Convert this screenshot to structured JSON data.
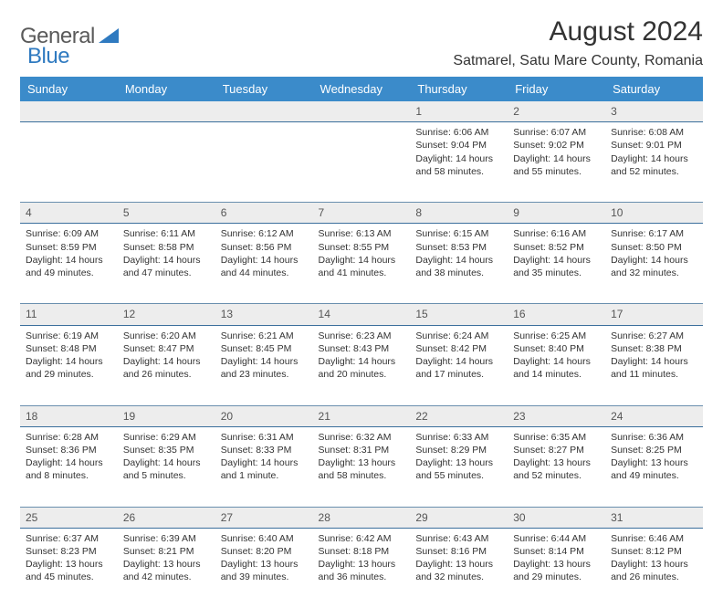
{
  "brand": {
    "name_a": "General",
    "name_b": "Blue"
  },
  "header": {
    "month_title": "August 2024",
    "location": "Satmarel, Satu Mare County, Romania"
  },
  "colors": {
    "header_bg": "#3b8bca",
    "header_text": "#ffffff",
    "daynum_bg": "#ededed",
    "rule": "#3b6f9c",
    "brand_blue": "#2f7ac0"
  },
  "day_labels": [
    "Sunday",
    "Monday",
    "Tuesday",
    "Wednesday",
    "Thursday",
    "Friday",
    "Saturday"
  ],
  "weeks": [
    {
      "numbers": [
        "",
        "",
        "",
        "",
        "1",
        "2",
        "3"
      ],
      "cells": [
        null,
        null,
        null,
        null,
        {
          "sunrise": "Sunrise: 6:06 AM",
          "sunset": "Sunset: 9:04 PM",
          "day1": "Daylight: 14 hours",
          "day2": "and 58 minutes."
        },
        {
          "sunrise": "Sunrise: 6:07 AM",
          "sunset": "Sunset: 9:02 PM",
          "day1": "Daylight: 14 hours",
          "day2": "and 55 minutes."
        },
        {
          "sunrise": "Sunrise: 6:08 AM",
          "sunset": "Sunset: 9:01 PM",
          "day1": "Daylight: 14 hours",
          "day2": "and 52 minutes."
        }
      ]
    },
    {
      "numbers": [
        "4",
        "5",
        "6",
        "7",
        "8",
        "9",
        "10"
      ],
      "cells": [
        {
          "sunrise": "Sunrise: 6:09 AM",
          "sunset": "Sunset: 8:59 PM",
          "day1": "Daylight: 14 hours",
          "day2": "and 49 minutes."
        },
        {
          "sunrise": "Sunrise: 6:11 AM",
          "sunset": "Sunset: 8:58 PM",
          "day1": "Daylight: 14 hours",
          "day2": "and 47 minutes."
        },
        {
          "sunrise": "Sunrise: 6:12 AM",
          "sunset": "Sunset: 8:56 PM",
          "day1": "Daylight: 14 hours",
          "day2": "and 44 minutes."
        },
        {
          "sunrise": "Sunrise: 6:13 AM",
          "sunset": "Sunset: 8:55 PM",
          "day1": "Daylight: 14 hours",
          "day2": "and 41 minutes."
        },
        {
          "sunrise": "Sunrise: 6:15 AM",
          "sunset": "Sunset: 8:53 PM",
          "day1": "Daylight: 14 hours",
          "day2": "and 38 minutes."
        },
        {
          "sunrise": "Sunrise: 6:16 AM",
          "sunset": "Sunset: 8:52 PM",
          "day1": "Daylight: 14 hours",
          "day2": "and 35 minutes."
        },
        {
          "sunrise": "Sunrise: 6:17 AM",
          "sunset": "Sunset: 8:50 PM",
          "day1": "Daylight: 14 hours",
          "day2": "and 32 minutes."
        }
      ]
    },
    {
      "numbers": [
        "11",
        "12",
        "13",
        "14",
        "15",
        "16",
        "17"
      ],
      "cells": [
        {
          "sunrise": "Sunrise: 6:19 AM",
          "sunset": "Sunset: 8:48 PM",
          "day1": "Daylight: 14 hours",
          "day2": "and 29 minutes."
        },
        {
          "sunrise": "Sunrise: 6:20 AM",
          "sunset": "Sunset: 8:47 PM",
          "day1": "Daylight: 14 hours",
          "day2": "and 26 minutes."
        },
        {
          "sunrise": "Sunrise: 6:21 AM",
          "sunset": "Sunset: 8:45 PM",
          "day1": "Daylight: 14 hours",
          "day2": "and 23 minutes."
        },
        {
          "sunrise": "Sunrise: 6:23 AM",
          "sunset": "Sunset: 8:43 PM",
          "day1": "Daylight: 14 hours",
          "day2": "and 20 minutes."
        },
        {
          "sunrise": "Sunrise: 6:24 AM",
          "sunset": "Sunset: 8:42 PM",
          "day1": "Daylight: 14 hours",
          "day2": "and 17 minutes."
        },
        {
          "sunrise": "Sunrise: 6:25 AM",
          "sunset": "Sunset: 8:40 PM",
          "day1": "Daylight: 14 hours",
          "day2": "and 14 minutes."
        },
        {
          "sunrise": "Sunrise: 6:27 AM",
          "sunset": "Sunset: 8:38 PM",
          "day1": "Daylight: 14 hours",
          "day2": "and 11 minutes."
        }
      ]
    },
    {
      "numbers": [
        "18",
        "19",
        "20",
        "21",
        "22",
        "23",
        "24"
      ],
      "cells": [
        {
          "sunrise": "Sunrise: 6:28 AM",
          "sunset": "Sunset: 8:36 PM",
          "day1": "Daylight: 14 hours",
          "day2": "and 8 minutes."
        },
        {
          "sunrise": "Sunrise: 6:29 AM",
          "sunset": "Sunset: 8:35 PM",
          "day1": "Daylight: 14 hours",
          "day2": "and 5 minutes."
        },
        {
          "sunrise": "Sunrise: 6:31 AM",
          "sunset": "Sunset: 8:33 PM",
          "day1": "Daylight: 14 hours",
          "day2": "and 1 minute."
        },
        {
          "sunrise": "Sunrise: 6:32 AM",
          "sunset": "Sunset: 8:31 PM",
          "day1": "Daylight: 13 hours",
          "day2": "and 58 minutes."
        },
        {
          "sunrise": "Sunrise: 6:33 AM",
          "sunset": "Sunset: 8:29 PM",
          "day1": "Daylight: 13 hours",
          "day2": "and 55 minutes."
        },
        {
          "sunrise": "Sunrise: 6:35 AM",
          "sunset": "Sunset: 8:27 PM",
          "day1": "Daylight: 13 hours",
          "day2": "and 52 minutes."
        },
        {
          "sunrise": "Sunrise: 6:36 AM",
          "sunset": "Sunset: 8:25 PM",
          "day1": "Daylight: 13 hours",
          "day2": "and 49 minutes."
        }
      ]
    },
    {
      "numbers": [
        "25",
        "26",
        "27",
        "28",
        "29",
        "30",
        "31"
      ],
      "cells": [
        {
          "sunrise": "Sunrise: 6:37 AM",
          "sunset": "Sunset: 8:23 PM",
          "day1": "Daylight: 13 hours",
          "day2": "and 45 minutes."
        },
        {
          "sunrise": "Sunrise: 6:39 AM",
          "sunset": "Sunset: 8:21 PM",
          "day1": "Daylight: 13 hours",
          "day2": "and 42 minutes."
        },
        {
          "sunrise": "Sunrise: 6:40 AM",
          "sunset": "Sunset: 8:20 PM",
          "day1": "Daylight: 13 hours",
          "day2": "and 39 minutes."
        },
        {
          "sunrise": "Sunrise: 6:42 AM",
          "sunset": "Sunset: 8:18 PM",
          "day1": "Daylight: 13 hours",
          "day2": "and 36 minutes."
        },
        {
          "sunrise": "Sunrise: 6:43 AM",
          "sunset": "Sunset: 8:16 PM",
          "day1": "Daylight: 13 hours",
          "day2": "and 32 minutes."
        },
        {
          "sunrise": "Sunrise: 6:44 AM",
          "sunset": "Sunset: 8:14 PM",
          "day1": "Daylight: 13 hours",
          "day2": "and 29 minutes."
        },
        {
          "sunrise": "Sunrise: 6:46 AM",
          "sunset": "Sunset: 8:12 PM",
          "day1": "Daylight: 13 hours",
          "day2": "and 26 minutes."
        }
      ]
    }
  ]
}
